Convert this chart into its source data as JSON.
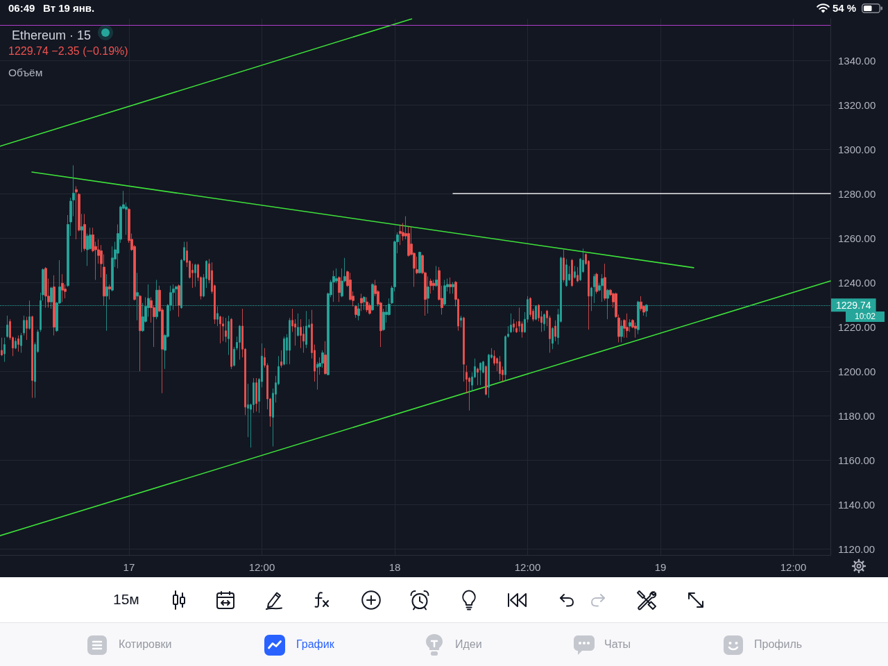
{
  "chart_data": {
    "type": "candlestick",
    "title": "Ethereum · 15",
    "annotations": [
      "06:49",
      "Вт 19 янв.",
      "54 %",
      "1229.74 −2.35 (−0.19%)",
      "Объём",
      "10:02",
      "15м",
      "Котировки",
      "График",
      "Идеи",
      "Чаты",
      "Профиль"
    ],
    "xlim": [
      "--01-16T12:21",
      "--01-19T15:21"
    ],
    "xticks": [
      {
        "value": "--01-17",
        "label": "17"
      },
      {
        "value": "--01-17T12:00",
        "label": "12:00"
      },
      {
        "value": "--01-18",
        "label": "18"
      },
      {
        "value": "--01-18T12:00",
        "label": "12:00"
      },
      {
        "value": "--01-19",
        "label": "19"
      },
      {
        "value": "--01-19T12:00",
        "label": "12:00"
      }
    ],
    "ylim": [
      1117.2,
      1358.75
    ],
    "yticks": [
      {
        "value": 1120,
        "label": "1120.00"
      },
      {
        "value": 1140,
        "label": "1140.00"
      },
      {
        "value": 1160,
        "label": "1160.00"
      },
      {
        "value": 1180,
        "label": "1180.00"
      },
      {
        "value": 1200,
        "label": "1200.00"
      },
      {
        "value": 1220,
        "label": "1220.00"
      },
      {
        "value": 1240,
        "label": "1240.00"
      },
      {
        "value": 1260,
        "label": "1260.00"
      },
      {
        "value": 1280,
        "label": "1280.00"
      },
      {
        "value": 1300,
        "label": "1300.00"
      },
      {
        "value": 1320,
        "label": "1320.00"
      },
      {
        "value": 1340,
        "label": "1340.00"
      }
    ],
    "grid": true,
    "marker": "none",
    "line_style": "solid",
    "ref_lines": [
      {
        "axis": "y",
        "value": 1356,
        "color": "#b03cc8"
      },
      {
        "axis": "y",
        "value": 1229.74,
        "label": "1229.74",
        "color": "#26a69a",
        "line_style": "dotted"
      }
    ],
    "series": [
      {
        "x": [
          "--01-16T12:30",
          "--01-16T12:45",
          "--01-16T13:00",
          "--01-16T13:15",
          "--01-16T13:30",
          "--01-16T13:45",
          "--01-16T14:00",
          "--01-16T14:15",
          "--01-16T14:30",
          "--01-16T14:45",
          "--01-16T15:00",
          "--01-16T15:15",
          "--01-16T15:30",
          "--01-16T15:45",
          "--01-16T16:00",
          "--01-16T16:15",
          "--01-16T16:30",
          "--01-16T16:45",
          "--01-16T17:00",
          "--01-16T17:15",
          "--01-16T17:30",
          "--01-16T17:45",
          "--01-16T18:00",
          "--01-16T18:15",
          "--01-16T18:30",
          "--01-16T18:45",
          "--01-16T19:00",
          "--01-16T19:15",
          "--01-16T19:30",
          "--01-16T19:45",
          "--01-16T20:00",
          "--01-16T20:15",
          "--01-16T20:30",
          "--01-16T20:45",
          "--01-16T21:00",
          "--01-16T21:15",
          "--01-16T21:30",
          "--01-16T21:45",
          "--01-16T22:00",
          "--01-16T22:15",
          "--01-16T22:30",
          "--01-16T22:45",
          "--01-16T23:00",
          "--01-16T23:15",
          "--01-16T23:30",
          "--01-16T23:45",
          "--01-17T00:00",
          "--01-17T00:15",
          "--01-17T00:30",
          "--01-17T00:45",
          "--01-17T01:00",
          "--01-17T01:15",
          "--01-17T01:30",
          "--01-17T01:45",
          "--01-17T02:00",
          "--01-17T02:15",
          "--01-17T02:30",
          "--01-17T02:45",
          "--01-17T03:00",
          "--01-17T03:15",
          "--01-17T03:30",
          "--01-17T03:45",
          "--01-17T04:00",
          "--01-17T04:15",
          "--01-17T04:30",
          "--01-17T04:45",
          "--01-17T05:00",
          "--01-17T05:15",
          "--01-17T05:30",
          "--01-17T05:45",
          "--01-17T06:00",
          "--01-17T06:15",
          "--01-17T06:30",
          "--01-17T06:45",
          "--01-17T07:00",
          "--01-17T07:15",
          "--01-17T07:30",
          "--01-17T07:45",
          "--01-17T08:00",
          "--01-17T08:15",
          "--01-17T08:30",
          "--01-17T08:45",
          "--01-17T09:00",
          "--01-17T09:15",
          "--01-17T09:30",
          "--01-17T09:45",
          "--01-17T10:00",
          "--01-17T10:15",
          "--01-17T10:30",
          "--01-17T10:45",
          "--01-17T11:00",
          "--01-17T11:15",
          "--01-17T11:30",
          "--01-17T11:45",
          "--01-17T12:00",
          "--01-17T12:15",
          "--01-17T12:30",
          "--01-17T12:45",
          "--01-17T13:00",
          "--01-17T13:15",
          "--01-17T13:30",
          "--01-17T13:45",
          "--01-17T14:00",
          "--01-17T14:15",
          "--01-17T14:30",
          "--01-17T14:45",
          "--01-17T15:00",
          "--01-17T15:15",
          "--01-17T15:30",
          "--01-17T15:45",
          "--01-17T16:00",
          "--01-17T16:15",
          "--01-17T16:30",
          "--01-17T16:45",
          "--01-17T17:00",
          "--01-17T17:15",
          "--01-17T17:30",
          "--01-17T17:45",
          "--01-17T18:00",
          "--01-17T18:15",
          "--01-17T18:30",
          "--01-17T18:45",
          "--01-17T19:00",
          "--01-17T19:15",
          "--01-17T19:30",
          "--01-17T19:45",
          "--01-17T20:00",
          "--01-17T20:15",
          "--01-17T20:30",
          "--01-17T20:45",
          "--01-17T21:00",
          "--01-17T21:15",
          "--01-17T21:30",
          "--01-17T21:45",
          "--01-17T22:00",
          "--01-17T22:15",
          "--01-17T22:30",
          "--01-17T22:45",
          "--01-17T23:00",
          "--01-17T23:15",
          "--01-17T23:30",
          "--01-17T23:45",
          "--01-18T00:00",
          "--01-18T00:15",
          "--01-18T00:30",
          "--01-18T00:45",
          "--01-18T01:00",
          "--01-18T01:15",
          "--01-18T01:30",
          "--01-18T01:45",
          "--01-18T02:00",
          "--01-18T02:15",
          "--01-18T02:30",
          "--01-18T02:45",
          "--01-18T03:00",
          "--01-18T03:15",
          "--01-18T03:30",
          "--01-18T03:45",
          "--01-18T04:00",
          "--01-18T04:15",
          "--01-18T04:30",
          "--01-18T04:45",
          "--01-18T05:00",
          "--01-18T05:15",
          "--01-18T05:30",
          "--01-18T05:45",
          "--01-18T06:00",
          "--01-18T06:15",
          "--01-18T06:30",
          "--01-18T06:45",
          "--01-18T07:00",
          "--01-18T07:15",
          "--01-18T07:30",
          "--01-18T07:45",
          "--01-18T08:00",
          "--01-18T08:15",
          "--01-18T08:30",
          "--01-18T08:45",
          "--01-18T09:00",
          "--01-18T09:15",
          "--01-18T09:30",
          "--01-18T09:45",
          "--01-18T10:00",
          "--01-18T10:15",
          "--01-18T10:30",
          "--01-18T10:45",
          "--01-18T11:00",
          "--01-18T11:15",
          "--01-18T11:30",
          "--01-18T11:45",
          "--01-18T12:00",
          "--01-18T12:15",
          "--01-18T12:30",
          "--01-18T12:45",
          "--01-18T13:00",
          "--01-18T13:15",
          "--01-18T13:30",
          "--01-18T13:45",
          "--01-18T14:00",
          "--01-18T14:15",
          "--01-18T14:30",
          "--01-18T14:45",
          "--01-18T15:00",
          "--01-18T15:15",
          "--01-18T15:30",
          "--01-18T15:45",
          "--01-18T16:00",
          "--01-18T16:15",
          "--01-18T16:30",
          "--01-18T16:45",
          "--01-18T17:00",
          "--01-18T17:15",
          "--01-18T17:30",
          "--01-18T17:45",
          "--01-18T18:00",
          "--01-18T18:15",
          "--01-18T18:30",
          "--01-18T18:45",
          "--01-18T19:00",
          "--01-18T19:15",
          "--01-18T19:30",
          "--01-18T19:45",
          "--01-18T20:00",
          "--01-18T20:15",
          "--01-18T20:30",
          "--01-18T20:45",
          "--01-18T21:00",
          "--01-18T21:15",
          "--01-18T21:30",
          "--01-18T21:45",
          "--01-18T22:00",
          "--01-18T22:15",
          "--01-18T22:30",
          "--01-18T22:45"
        ],
        "ohlc": [
          [
            1209.4,
            1215.1,
            1206.8,
            1207.3
          ],
          [
            1207.8,
            1215.1,
            1204.2,
            1212.0
          ],
          [
            1215.6,
            1225.0,
            1215.1,
            1220.8
          ],
          [
            1222.4,
            1223.4,
            1214.1,
            1215.1
          ],
          [
            1215.1,
            1215.6,
            1206.8,
            1210.4
          ],
          [
            1210.4,
            1215.1,
            1209.9,
            1213.5
          ],
          [
            1214.6,
            1216.1,
            1208.8,
            1212.0
          ],
          [
            1211.5,
            1217.2,
            1208.3,
            1216.1
          ],
          [
            1217.2,
            1225.0,
            1216.1,
            1222.9
          ],
          [
            1222.9,
            1224.5,
            1214.1,
            1219.3
          ],
          [
            1219.3,
            1231.8,
            1218.7,
            1224.5
          ],
          [
            1224.5,
            1225.0,
            1188.0,
            1195.8
          ],
          [
            1195.3,
            1213.0,
            1188.0,
            1212.0
          ],
          [
            1208.8,
            1218.7,
            1208.3,
            1217.7
          ],
          [
            1218.7,
            1235.4,
            1217.7,
            1231.8
          ],
          [
            1234.4,
            1246.3,
            1231.8,
            1245.8
          ],
          [
            1246.3,
            1246.9,
            1228.6,
            1233.8
          ],
          [
            1233.8,
            1241.7,
            1228.6,
            1231.2
          ],
          [
            1231.2,
            1238.0,
            1228.1,
            1237.5
          ],
          [
            1238.0,
            1243.2,
            1216.1,
            1219.8
          ],
          [
            1218.2,
            1231.2,
            1217.7,
            1230.7
          ],
          [
            1230.7,
            1250.0,
            1230.2,
            1238.0
          ],
          [
            1239.6,
            1243.7,
            1231.2,
            1236.5
          ],
          [
            1237.0,
            1239.1,
            1232.8,
            1235.9
          ],
          [
            1238.5,
            1270.3,
            1238.0,
            1266.1
          ],
          [
            1267.2,
            1278.1,
            1260.9,
            1276.6
          ],
          [
            1277.1,
            1292.7,
            1269.8,
            1280.2
          ],
          [
            1281.8,
            1283.3,
            1259.4,
            1280.7
          ],
          [
            1279.7,
            1280.2,
            1263.0,
            1263.5
          ],
          [
            1263.5,
            1270.8,
            1253.6,
            1265.1
          ],
          [
            1266.1,
            1270.8,
            1254.2,
            1255.2
          ],
          [
            1254.7,
            1262.0,
            1247.4,
            1260.9
          ],
          [
            1255.2,
            1264.6,
            1254.7,
            1261.4
          ],
          [
            1261.4,
            1264.6,
            1253.6,
            1254.2
          ],
          [
            1256.2,
            1258.3,
            1241.1,
            1254.7
          ],
          [
            1254.7,
            1259.4,
            1248.4,
            1252.1
          ],
          [
            1254.2,
            1256.8,
            1242.2,
            1248.4
          ],
          [
            1246.9,
            1252.6,
            1229.7,
            1233.8
          ],
          [
            1233.8,
            1243.7,
            1218.2,
            1238.0
          ],
          [
            1238.0,
            1239.1,
            1232.3,
            1237.0
          ],
          [
            1236.5,
            1256.2,
            1235.9,
            1251.0
          ],
          [
            1250.5,
            1258.3,
            1246.9,
            1254.7
          ],
          [
            1253.1,
            1266.1,
            1246.3,
            1262.0
          ],
          [
            1259.4,
            1274.5,
            1257.8,
            1274.0
          ],
          [
            1273.4,
            1281.2,
            1272.9,
            1275.0
          ],
          [
            1272.9,
            1276.0,
            1261.4,
            1274.0
          ],
          [
            1272.9,
            1273.4,
            1257.8,
            1258.8
          ],
          [
            1259.4,
            1262.0,
            1254.2,
            1254.7
          ],
          [
            1256.2,
            1256.8,
            1231.8,
            1232.3
          ],
          [
            1233.8,
            1244.3,
            1222.9,
            1235.4
          ],
          [
            1233.8,
            1234.4,
            1200.0,
            1218.2
          ],
          [
            1218.2,
            1230.7,
            1217.7,
            1224.5
          ],
          [
            1222.4,
            1233.3,
            1221.9,
            1229.2
          ],
          [
            1228.6,
            1239.1,
            1224.5,
            1232.8
          ],
          [
            1231.8,
            1233.3,
            1221.9,
            1228.6
          ],
          [
            1228.6,
            1229.7,
            1210.9,
            1224.5
          ],
          [
            1224.5,
            1241.1,
            1223.4,
            1236.5
          ],
          [
            1236.5,
            1238.5,
            1226.6,
            1227.1
          ],
          [
            1227.6,
            1228.6,
            1190.1,
            1209.9
          ],
          [
            1209.4,
            1216.7,
            1201.0,
            1216.1
          ],
          [
            1215.6,
            1230.2,
            1215.1,
            1229.7
          ],
          [
            1229.7,
            1238.5,
            1227.1,
            1235.4
          ],
          [
            1235.4,
            1239.1,
            1227.6,
            1237.0
          ],
          [
            1237.0,
            1238.5,
            1229.7,
            1238.0
          ],
          [
            1238.5,
            1239.1,
            1224.5,
            1229.7
          ],
          [
            1228.6,
            1250.5,
            1228.1,
            1250.0
          ],
          [
            1250.0,
            1258.3,
            1249.5,
            1255.7
          ],
          [
            1254.2,
            1258.3,
            1246.9,
            1249.0
          ],
          [
            1249.5,
            1250.0,
            1241.7,
            1242.2
          ],
          [
            1245.5,
            1248.4,
            1237.5,
            1244.3
          ],
          [
            1244.3,
            1248.4,
            1238.0,
            1247.9
          ],
          [
            1247.9,
            1248.4,
            1240.6,
            1242.2
          ],
          [
            1242.2,
            1242.7,
            1232.3,
            1233.8
          ],
          [
            1233.8,
            1243.7,
            1233.3,
            1242.2
          ],
          [
            1241.7,
            1250.0,
            1237.5,
            1249.5
          ],
          [
            1248.4,
            1250.5,
            1239.6,
            1241.1
          ],
          [
            1245.3,
            1249.0,
            1234.9,
            1235.9
          ],
          [
            1238.5,
            1239.0,
            1221.3,
            1223.4
          ],
          [
            1223.4,
            1229.2,
            1220.3,
            1226.0
          ],
          [
            1224.5,
            1225.0,
            1212.5,
            1221.3
          ],
          [
            1221.3,
            1224.5,
            1213.5,
            1220.3
          ],
          [
            1218.2,
            1224.0,
            1213.0,
            1215.6
          ],
          [
            1214.6,
            1225.0,
            1207.3,
            1222.4
          ],
          [
            1223.4,
            1223.9,
            1201.0,
            1202.1
          ],
          [
            1202.6,
            1210.9,
            1202.1,
            1209.9
          ],
          [
            1210.4,
            1215.6,
            1209.4,
            1213.0
          ],
          [
            1213.0,
            1220.8,
            1205.2,
            1220.3
          ],
          [
            1220.3,
            1228.1,
            1206.2,
            1209.9
          ],
          [
            1209.9,
            1210.4,
            1180.2,
            1183.8
          ],
          [
            1183.3,
            1194.3,
            1170.3,
            1184.9
          ],
          [
            1182.8,
            1185.4,
            1165.6,
            1184.9
          ],
          [
            1184.9,
            1196.9,
            1181.2,
            1194.8
          ],
          [
            1194.8,
            1196.9,
            1181.8,
            1185.4
          ],
          [
            1186.4,
            1196.9,
            1181.2,
            1196.3
          ],
          [
            1195.3,
            1212.5,
            1192.7,
            1206.8
          ],
          [
            1206.2,
            1210.4,
            1201.6,
            1202.6
          ],
          [
            1202.6,
            1203.6,
            1182.8,
            1187.5
          ],
          [
            1187.5,
            1188.0,
            1175.0,
            1179.7
          ],
          [
            1179.2,
            1192.2,
            1166.1,
            1190.1
          ],
          [
            1189.6,
            1197.9,
            1185.9,
            1194.8
          ],
          [
            1194.3,
            1206.8,
            1193.7,
            1202.1
          ],
          [
            1204.2,
            1209.4,
            1201.6,
            1202.6
          ],
          [
            1203.1,
            1215.6,
            1202.6,
            1214.6
          ],
          [
            1209.4,
            1216.7,
            1203.1,
            1215.1
          ],
          [
            1209.4,
            1224.0,
            1203.1,
            1222.9
          ],
          [
            1222.9,
            1228.1,
            1217.7,
            1220.3
          ],
          [
            1221.3,
            1223.4,
            1211.5,
            1219.8
          ],
          [
            1216.1,
            1226.0,
            1215.6,
            1219.8
          ],
          [
            1219.8,
            1223.4,
            1210.4,
            1216.1
          ],
          [
            1216.7,
            1220.3,
            1208.3,
            1213.5
          ],
          [
            1212.0,
            1227.1,
            1210.4,
            1220.3
          ],
          [
            1219.8,
            1223.4,
            1219.3,
            1220.8
          ],
          [
            1221.3,
            1227.6,
            1205.7,
            1208.3
          ],
          [
            1209.4,
            1212.0,
            1195.3,
            1200.0
          ],
          [
            1201.6,
            1204.2,
            1191.7,
            1203.1
          ],
          [
            1202.1,
            1206.2,
            1198.4,
            1203.6
          ],
          [
            1203.6,
            1209.4,
            1201.6,
            1208.3
          ],
          [
            1207.3,
            1213.5,
            1198.4,
            1198.9
          ],
          [
            1198.4,
            1235.4,
            1198.2,
            1234.9
          ],
          [
            1234.4,
            1241.1,
            1233.3,
            1240.1
          ],
          [
            1240.1,
            1245.3,
            1231.2,
            1242.7
          ],
          [
            1240.6,
            1246.3,
            1239.6,
            1241.7
          ],
          [
            1242.2,
            1242.7,
            1231.2,
            1235.4
          ],
          [
            1233.8,
            1246.3,
            1233.3,
            1240.6
          ],
          [
            1240.6,
            1251.0,
            1240.1,
            1242.7
          ],
          [
            1244.8,
            1245.3,
            1238.0,
            1238.5
          ],
          [
            1241.1,
            1244.3,
            1231.8,
            1232.3
          ],
          [
            1233.8,
            1235.9,
            1229.2,
            1231.8
          ],
          [
            1229.2,
            1229.7,
            1224.0,
            1225.5
          ],
          [
            1225.0,
            1230.7,
            1222.9,
            1228.1
          ],
          [
            1232.8,
            1234.9,
            1227.1,
            1230.7
          ],
          [
            1231.2,
            1233.8,
            1227.6,
            1233.3
          ],
          [
            1231.2,
            1233.3,
            1226.6,
            1227.6
          ],
          [
            1229.7,
            1230.7,
            1225.5,
            1226.0
          ],
          [
            1227.6,
            1239.6,
            1227.1,
            1239.1
          ],
          [
            1238.5,
            1241.1,
            1233.8,
            1234.9
          ],
          [
            1235.9,
            1236.5,
            1229.2,
            1230.2
          ],
          [
            1230.7,
            1231.2,
            1210.9,
            1218.2
          ],
          [
            1218.7,
            1228.1,
            1218.2,
            1226.6
          ],
          [
            1225.5,
            1229.7,
            1221.9,
            1226.6
          ],
          [
            1225.5,
            1232.8,
            1225.0,
            1230.2
          ],
          [
            1230.7,
            1238.5,
            1230.2,
            1237.5
          ],
          [
            1238.0,
            1258.8,
            1235.9,
            1258.3
          ],
          [
            1258.3,
            1262.5,
            1253.1,
            1261.4
          ],
          [
            1263.0,
            1266.1,
            1256.8,
            1262.0
          ],
          [
            1262.5,
            1266.7,
            1258.8,
            1260.9
          ],
          [
            1262.0,
            1269.8,
            1259.4,
            1260.9
          ],
          [
            1262.0,
            1265.1,
            1251.6,
            1252.1
          ],
          [
            1257.3,
            1265.1,
            1252.1,
            1252.6
          ],
          [
            1253.1,
            1253.6,
            1238.0,
            1246.3
          ],
          [
            1245.8,
            1251.6,
            1243.7,
            1244.3
          ],
          [
            1244.3,
            1253.8,
            1244.0,
            1253.6
          ],
          [
            1252.1,
            1252.6,
            1243.7,
            1244.3
          ],
          [
            1244.3,
            1244.8,
            1225.0,
            1232.3
          ],
          [
            1232.8,
            1242.7,
            1226.0,
            1238.0
          ],
          [
            1240.6,
            1241.7,
            1234.9,
            1238.5
          ],
          [
            1239.6,
            1241.1,
            1236.5,
            1238.5
          ],
          [
            1238.5,
            1247.4,
            1238.0,
            1241.1
          ],
          [
            1245.3,
            1246.9,
            1231.8,
            1232.3
          ],
          [
            1232.8,
            1238.5,
            1225.5,
            1228.6
          ],
          [
            1230.2,
            1241.1,
            1229.7,
            1238.5
          ],
          [
            1238.0,
            1241.7,
            1235.9,
            1239.1
          ],
          [
            1239.1,
            1242.2,
            1234.9,
            1238.0
          ],
          [
            1238.0,
            1240.1,
            1234.9,
            1239.1
          ],
          [
            1240.1,
            1240.6,
            1229.2,
            1232.3
          ],
          [
            1232.3,
            1232.8,
            1218.2,
            1220.3
          ],
          [
            1222.9,
            1225.0,
            1219.8,
            1224.0
          ],
          [
            1224.0,
            1224.5,
            1195.3,
            1203.1
          ],
          [
            1199.5,
            1202.6,
            1190.1,
            1196.3
          ],
          [
            1196.9,
            1197.4,
            1182.3,
            1195.3
          ],
          [
            1193.7,
            1199.5,
            1191.1,
            1197.4
          ],
          [
            1197.4,
            1205.7,
            1196.9,
            1202.1
          ],
          [
            1201.0,
            1201.6,
            1193.7,
            1199.5
          ],
          [
            1200.5,
            1204.0,
            1193.7,
            1203.6
          ],
          [
            1199.5,
            1204.7,
            1199.0,
            1204.2
          ],
          [
            1202.1,
            1202.6,
            1189.1,
            1189.6
          ],
          [
            1192.7,
            1207.8,
            1188.0,
            1207.3
          ],
          [
            1206.2,
            1210.4,
            1205.7,
            1207.3
          ],
          [
            1206.8,
            1209.4,
            1202.6,
            1203.6
          ],
          [
            1205.7,
            1206.2,
            1200.0,
            1203.6
          ],
          [
            1204.2,
            1206.8,
            1195.8,
            1198.9
          ],
          [
            1200.5,
            1202.1,
            1195.3,
            1198.4
          ],
          [
            1198.4,
            1216.1,
            1195.8,
            1215.6
          ],
          [
            1215.6,
            1220.3,
            1215.1,
            1216.7
          ],
          [
            1217.7,
            1226.0,
            1217.2,
            1220.8
          ],
          [
            1221.3,
            1223.4,
            1217.7,
            1219.8
          ],
          [
            1219.3,
            1222.4,
            1217.2,
            1217.7
          ],
          [
            1222.4,
            1228.6,
            1217.7,
            1220.3
          ],
          [
            1221.3,
            1222.4,
            1215.1,
            1217.7
          ],
          [
            1217.7,
            1226.6,
            1217.2,
            1223.4
          ],
          [
            1223.4,
            1233.8,
            1221.9,
            1232.3
          ],
          [
            1232.8,
            1233.3,
            1224.5,
            1225.5
          ],
          [
            1227.1,
            1228.1,
            1222.4,
            1223.4
          ],
          [
            1223.4,
            1229.7,
            1222.9,
            1229.2
          ],
          [
            1229.7,
            1230.2,
            1222.4,
            1224.0
          ],
          [
            1224.5,
            1227.1,
            1217.7,
            1221.9
          ],
          [
            1221.3,
            1226.0,
            1218.2,
            1225.5
          ],
          [
            1227.1,
            1227.6,
            1220.3,
            1224.0
          ],
          [
            1224.0,
            1225.0,
            1208.3,
            1214.6
          ],
          [
            1212.5,
            1219.8,
            1209.9,
            1219.3
          ],
          [
            1220.3,
            1222.9,
            1213.5,
            1215.6
          ],
          [
            1215.1,
            1228.1,
            1212.0,
            1225.5
          ],
          [
            1222.4,
            1251.6,
            1221.9,
            1251.0
          ],
          [
            1251.0,
            1254.7,
            1240.1,
            1241.1
          ],
          [
            1238.5,
            1250.5,
            1238.0,
            1247.9
          ],
          [
            1241.1,
            1247.4,
            1240.6,
            1243.7
          ],
          [
            1250.0,
            1250.5,
            1238.0,
            1238.5
          ],
          [
            1242.2,
            1247.4,
            1241.7,
            1244.8
          ],
          [
            1243.2,
            1246.9,
            1240.1,
            1240.6
          ],
          [
            1241.1,
            1251.0,
            1240.6,
            1250.5
          ],
          [
            1244.8,
            1255.2,
            1244.3,
            1250.0
          ],
          [
            1252.6,
            1253.1,
            1247.9,
            1248.4
          ],
          [
            1249.5,
            1250.0,
            1218.7,
            1233.8
          ],
          [
            1233.8,
            1238.0,
            1227.1,
            1237.5
          ],
          [
            1238.0,
            1243.7,
            1230.7,
            1242.7
          ],
          [
            1243.7,
            1244.3,
            1234.9,
            1235.9
          ],
          [
            1236.5,
            1239.6,
            1235.9,
            1238.5
          ],
          [
            1238.5,
            1243.7,
            1231.2,
            1241.7
          ],
          [
            1242.2,
            1248.4,
            1231.8,
            1232.8
          ],
          [
            1232.8,
            1237.0,
            1223.4,
            1236.5
          ],
          [
            1236.5,
            1237.0,
            1233.8,
            1234.4
          ],
          [
            1234.9,
            1235.4,
            1228.6,
            1231.2
          ],
          [
            1234.9,
            1235.4,
            1224.0,
            1224.5
          ],
          [
            1224.0,
            1225.5,
            1213.0,
            1215.6
          ],
          [
            1215.6,
            1222.9,
            1213.0,
            1220.3
          ],
          [
            1222.9,
            1223.4,
            1215.1,
            1219.3
          ],
          [
            1219.8,
            1226.0,
            1215.1,
            1218.2
          ],
          [
            1220.3,
            1223.4,
            1217.7,
            1221.9
          ],
          [
            1222.9,
            1223.4,
            1219.3,
            1219.8
          ],
          [
            1220.3,
            1221.9,
            1215.1,
            1219.3
          ],
          [
            1218.7,
            1231.7,
            1216.7,
            1231.2
          ],
          [
            1231.2,
            1233.8,
            1227.1,
            1228.1
          ],
          [
            1229.2,
            1229.7,
            1225.0,
            1226.6
          ],
          [
            1227.1,
            1230.2,
            1224.5,
            1229.74
          ]
        ],
        "colors": [
          "#ef5350",
          "#26a69a",
          "#26a69a",
          "#ef5350",
          "#ef5350",
          "#26a69a",
          "#ef5350",
          "#26a69a",
          "#26a69a",
          "#ef5350",
          "#26a69a",
          "#ef5350",
          "#26a69a",
          "#26a69a",
          "#26a69a",
          "#26a69a",
          "#ef5350",
          "#ef5350",
          "#26a69a",
          "#ef5350",
          "#26a69a",
          "#26a69a",
          "#ef5350",
          "#ef5350",
          "#26a69a",
          "#26a69a",
          "#26a69a",
          "#ef5350",
          "#ef5350",
          "#26a69a",
          "#ef5350",
          "#26a69a",
          "#26a69a",
          "#ef5350",
          "#ef5350",
          "#ef5350",
          "#ef5350",
          "#ef5350",
          "#26a69a",
          "#ef5350",
          "#26a69a",
          "#26a69a",
          "#26a69a",
          "#26a69a",
          "#26a69a",
          "#26a69a",
          "#ef5350",
          "#ef5350",
          "#ef5350",
          "#26a69a",
          "#ef5350",
          "#26a69a",
          "#26a69a",
          "#26a69a",
          "#ef5350",
          "#ef5350",
          "#26a69a",
          "#ef5350",
          "#ef5350",
          "#26a69a",
          "#26a69a",
          "#26a69a",
          "#26a69a",
          "#26a69a",
          "#ef5350",
          "#26a69a",
          "#26a69a",
          "#ef5350",
          "#ef5350",
          "#ef5350",
          "#26a69a",
          "#ef5350",
          "#ef5350",
          "#26a69a",
          "#26a69a",
          "#ef5350",
          "#ef5350",
          "#ef5350",
          "#26a69a",
          "#ef5350",
          "#ef5350",
          "#ef5350",
          "#26a69a",
          "#ef5350",
          "#26a69a",
          "#26a69a",
          "#26a69a",
          "#ef5350",
          "#ef5350",
          "#26a69a",
          "#26a69a",
          "#26a69a",
          "#ef5350",
          "#26a69a",
          "#26a69a",
          "#ef5350",
          "#ef5350",
          "#ef5350",
          "#26a69a",
          "#26a69a",
          "#26a69a",
          "#ef5350",
          "#26a69a",
          "#26a69a",
          "#26a69a",
          "#ef5350",
          "#ef5350",
          "#26a69a",
          "#ef5350",
          "#ef5350",
          "#26a69a",
          "#26a69a",
          "#ef5350",
          "#ef5350",
          "#26a69a",
          "#26a69a",
          "#26a69a",
          "#ef5350",
          "#26a69a",
          "#26a69a",
          "#26a69a",
          "#26a69a",
          "#ef5350",
          "#26a69a",
          "#26a69a",
          "#ef5350",
          "#ef5350",
          "#ef5350",
          "#ef5350",
          "#26a69a",
          "#ef5350",
          "#26a69a",
          "#ef5350",
          "#ef5350",
          "#26a69a",
          "#ef5350",
          "#ef5350",
          "#ef5350",
          "#26a69a",
          "#26a69a",
          "#26a69a",
          "#26a69a",
          "#26a69a",
          "#26a69a",
          "#ef5350",
          "#ef5350",
          "#ef5350",
          "#ef5350",
          "#ef5350",
          "#ef5350",
          "#ef5350",
          "#26a69a",
          "#ef5350",
          "#ef5350",
          "#26a69a",
          "#ef5350",
          "#ef5350",
          "#26a69a",
          "#ef5350",
          "#ef5350",
          "#26a69a",
          "#26a69a",
          "#ef5350",
          "#26a69a",
          "#ef5350",
          "#ef5350",
          "#26a69a",
          "#ef5350",
          "#ef5350",
          "#ef5350",
          "#26a69a",
          "#26a69a",
          "#ef5350",
          "#26a69a",
          "#26a69a",
          "#ef5350",
          "#26a69a",
          "#26a69a",
          "#ef5350",
          "#ef5350",
          "#ef5350",
          "#ef5350",
          "#26a69a",
          "#26a69a",
          "#26a69a",
          "#ef5350",
          "#ef5350",
          "#ef5350",
          "#ef5350",
          "#26a69a",
          "#26a69a",
          "#ef5350",
          "#ef5350",
          "#26a69a",
          "#ef5350",
          "#ef5350",
          "#26a69a",
          "#ef5350",
          "#ef5350",
          "#26a69a",
          "#ef5350",
          "#26a69a",
          "#26a69a",
          "#ef5350",
          "#26a69a",
          "#26a69a",
          "#ef5350",
          "#26a69a",
          "#ef5350",
          "#26a69a",
          "#26a69a",
          "#ef5350",
          "#ef5350",
          "#26a69a",
          "#26a69a",
          "#ef5350",
          "#26a69a",
          "#26a69a",
          "#ef5350",
          "#26a69a",
          "#ef5350",
          "#ef5350",
          "#ef5350",
          "#ef5350",
          "#26a69a",
          "#ef5350",
          "#ef5350",
          "#26a69a",
          "#ef5350",
          "#ef5350",
          "#26a69a",
          "#ef5350",
          "#ef5350",
          "#26a69a"
        ]
      },
      {
        "type": "line",
        "color": "#3ee43a",
        "x": [
          "--01-16T12:21",
          "--01-18T01:32"
        ],
        "values": [
          1301.3,
          1358.7
        ]
      },
      {
        "type": "line",
        "color": "#3ee43a",
        "x": [
          "--01-16T15:14",
          "--01-19T03:00"
        ],
        "values": [
          1289.7,
          1246.6
        ]
      },
      {
        "type": "line",
        "color": "#3ee43a",
        "x": [
          "--01-16T12:21",
          "--01-19T15:21"
        ],
        "values": [
          1125.9,
          1240.6
        ]
      },
      {
        "type": "line",
        "color": "#ececec",
        "x": [
          "--01-18T05:16",
          "--01-19T15:21"
        ],
        "values": [
          1280,
          1280
        ]
      }
    ]
  }
}
